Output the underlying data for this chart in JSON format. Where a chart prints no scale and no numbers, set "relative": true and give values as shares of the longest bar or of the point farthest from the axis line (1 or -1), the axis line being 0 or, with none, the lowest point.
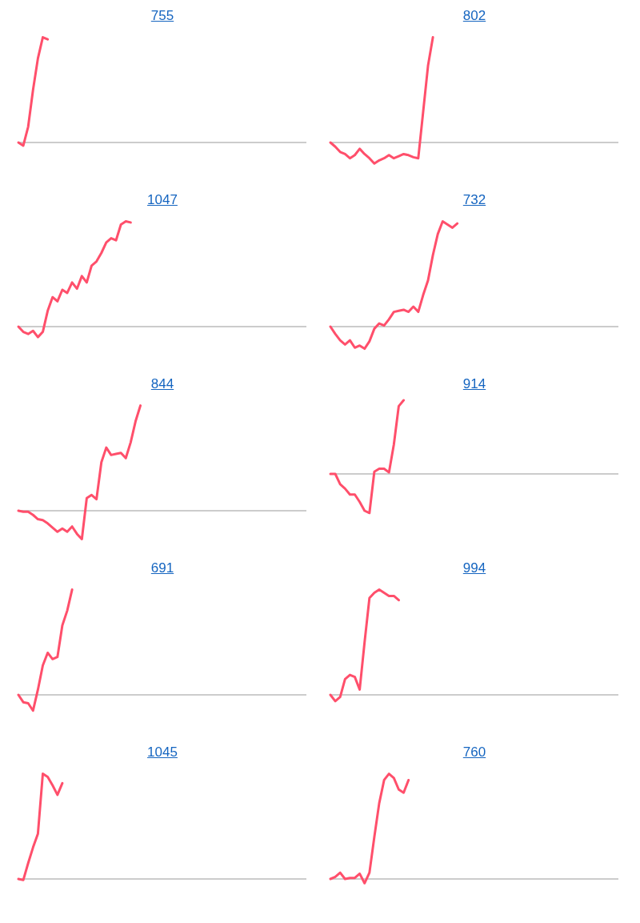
{
  "chart_data": [
    {
      "type": "line",
      "title": "755",
      "relative": true,
      "categories": [
        null,
        null,
        null,
        null,
        null,
        null,
        null,
        null,
        null,
        null,
        null,
        null,
        null,
        null,
        null,
        null,
        null,
        null,
        null,
        null,
        null,
        null,
        null,
        null,
        null,
        null,
        null,
        null,
        null,
        null,
        null,
        null,
        null,
        null,
        null,
        null,
        null,
        null,
        null,
        null,
        null,
        null,
        null,
        null,
        null,
        null,
        null,
        null,
        null,
        null,
        null,
        null,
        null,
        null,
        null,
        null,
        null,
        null,
        null,
        null
      ],
      "series": [
        {
          "color": "#ff4f6b",
          "values": [
            0,
            -0.03,
            0.15,
            0.5,
            0.8,
            1,
            0.98,
            null,
            null,
            null,
            null,
            null,
            null,
            null,
            null,
            null,
            null,
            null,
            null,
            null,
            null,
            null,
            null,
            null,
            null,
            null,
            null,
            null,
            null,
            null,
            null,
            null,
            null,
            null,
            null,
            null,
            null,
            null,
            null,
            null,
            null,
            null,
            null,
            null,
            null,
            null,
            null,
            null,
            null,
            null,
            null,
            null,
            null,
            null,
            null,
            null,
            null,
            null,
            null,
            null
          ]
        }
      ]
    },
    {
      "type": "line",
      "title": "802",
      "relative": true,
      "categories": [
        null,
        null,
        null,
        null,
        null,
        null,
        null,
        null,
        null,
        null,
        null,
        null,
        null,
        null,
        null,
        null,
        null,
        null,
        null,
        null,
        null,
        null,
        null,
        null,
        null,
        null,
        null,
        null,
        null,
        null,
        null,
        null,
        null,
        null,
        null,
        null,
        null,
        null,
        null,
        null,
        null,
        null,
        null,
        null,
        null,
        null,
        null,
        null,
        null,
        null,
        null,
        null,
        null,
        null,
        null,
        null,
        null,
        null,
        null,
        null
      ],
      "series": [
        {
          "color": "#ff4f6b",
          "values": [
            0,
            -0.04,
            -0.09,
            -0.11,
            -0.15,
            -0.12,
            -0.06,
            -0.11,
            -0.15,
            -0.2,
            -0.17,
            -0.15,
            -0.12,
            -0.15,
            -0.13,
            -0.11,
            -0.12,
            -0.14,
            -0.15,
            0.29,
            0.73,
            1,
            null,
            null,
            null,
            null,
            null,
            null,
            null,
            null,
            null,
            null,
            null,
            null,
            null,
            null,
            null,
            null,
            null,
            null,
            null,
            null,
            null,
            null,
            null,
            null,
            null,
            null,
            null,
            null,
            null,
            null,
            null,
            null,
            null,
            null,
            null,
            null,
            null,
            null
          ]
        }
      ]
    },
    {
      "type": "line",
      "title": "1047",
      "relative": true,
      "categories": [
        null,
        null,
        null,
        null,
        null,
        null,
        null,
        null,
        null,
        null,
        null,
        null,
        null,
        null,
        null,
        null,
        null,
        null,
        null,
        null,
        null,
        null,
        null,
        null,
        null,
        null,
        null,
        null,
        null,
        null,
        null,
        null,
        null,
        null,
        null,
        null,
        null,
        null,
        null,
        null,
        null,
        null,
        null,
        null,
        null,
        null,
        null,
        null,
        null,
        null,
        null,
        null,
        null,
        null,
        null,
        null,
        null,
        null,
        null,
        null
      ],
      "series": [
        {
          "color": "#ff4f6b",
          "values": [
            0,
            -0.05,
            -0.07,
            -0.04,
            -0.1,
            -0.05,
            0.15,
            0.28,
            0.24,
            0.35,
            0.32,
            0.42,
            0.36,
            0.48,
            0.42,
            0.58,
            0.62,
            0.7,
            0.8,
            0.84,
            0.82,
            0.97,
            1,
            0.99,
            null,
            null,
            null,
            null,
            null,
            null,
            null,
            null,
            null,
            null,
            null,
            null,
            null,
            null,
            null,
            null,
            null,
            null,
            null,
            null,
            null,
            null,
            null,
            null,
            null,
            null,
            null,
            null,
            null,
            null,
            null,
            null,
            null,
            null,
            null,
            null
          ]
        }
      ]
    },
    {
      "type": "line",
      "title": "732",
      "relative": true,
      "categories": [
        null,
        null,
        null,
        null,
        null,
        null,
        null,
        null,
        null,
        null,
        null,
        null,
        null,
        null,
        null,
        null,
        null,
        null,
        null,
        null,
        null,
        null,
        null,
        null,
        null,
        null,
        null,
        null,
        null,
        null,
        null,
        null,
        null,
        null,
        null,
        null,
        null,
        null,
        null,
        null,
        null,
        null,
        null,
        null,
        null,
        null,
        null,
        null,
        null,
        null,
        null,
        null,
        null,
        null,
        null,
        null,
        null,
        null,
        null,
        null
      ],
      "series": [
        {
          "color": "#ff4f6b",
          "values": [
            0,
            -0.07,
            -0.13,
            -0.17,
            -0.13,
            -0.2,
            -0.18,
            -0.21,
            -0.14,
            -0.02,
            0.03,
            0.01,
            0.07,
            0.14,
            0.15,
            0.16,
            0.14,
            0.19,
            0.14,
            0.3,
            0.44,
            0.68,
            0.88,
            1,
            0.97,
            0.94,
            0.98,
            null,
            null,
            null,
            null,
            null,
            null,
            null,
            null,
            null,
            null,
            null,
            null,
            null,
            null,
            null,
            null,
            null,
            null,
            null,
            null,
            null,
            null,
            null,
            null,
            null,
            null,
            null,
            null,
            null,
            null,
            null,
            null,
            null
          ]
        }
      ]
    },
    {
      "type": "line",
      "title": "844",
      "relative": true,
      "categories": [
        null,
        null,
        null,
        null,
        null,
        null,
        null,
        null,
        null,
        null,
        null,
        null,
        null,
        null,
        null,
        null,
        null,
        null,
        null,
        null,
        null,
        null,
        null,
        null,
        null,
        null,
        null,
        null,
        null,
        null,
        null,
        null,
        null,
        null,
        null,
        null,
        null,
        null,
        null,
        null,
        null,
        null,
        null,
        null,
        null,
        null,
        null,
        null,
        null,
        null,
        null,
        null,
        null,
        null,
        null,
        null,
        null,
        null,
        null,
        null
      ],
      "series": [
        {
          "color": "#ff4f6b",
          "values": [
            0,
            -0.01,
            -0.01,
            -0.04,
            -0.08,
            -0.09,
            -0.12,
            -0.16,
            -0.2,
            -0.17,
            -0.2,
            -0.15,
            -0.22,
            -0.27,
            0.12,
            0.15,
            0.11,
            0.46,
            0.6,
            0.53,
            0.54,
            0.55,
            0.5,
            0.65,
            0.85,
            1,
            null,
            null,
            null,
            null,
            null,
            null,
            null,
            null,
            null,
            null,
            null,
            null,
            null,
            null,
            null,
            null,
            null,
            null,
            null,
            null,
            null,
            null,
            null,
            null,
            null,
            null,
            null,
            null,
            null,
            null,
            null,
            null,
            null,
            null
          ]
        }
      ]
    },
    {
      "type": "line",
      "title": "914",
      "relative": true,
      "categories": [
        null,
        null,
        null,
        null,
        null,
        null,
        null,
        null,
        null,
        null,
        null,
        null,
        null,
        null,
        null,
        null,
        null,
        null,
        null,
        null,
        null,
        null,
        null,
        null,
        null,
        null,
        null,
        null,
        null,
        null,
        null,
        null,
        null,
        null,
        null,
        null,
        null,
        null,
        null,
        null,
        null,
        null,
        null,
        null,
        null,
        null,
        null,
        null,
        null,
        null,
        null,
        null,
        null,
        null,
        null,
        null,
        null,
        null,
        null,
        null
      ],
      "series": [
        {
          "color": "#ff4f6b",
          "values": [
            0,
            0,
            -0.14,
            -0.2,
            -0.28,
            -0.28,
            -0.38,
            -0.5,
            -0.53,
            0.03,
            0.07,
            0.07,
            0.02,
            0.4,
            0.92,
            1,
            null,
            null,
            null,
            null,
            null,
            null,
            null,
            null,
            null,
            null,
            null,
            null,
            null,
            null,
            null,
            null,
            null,
            null,
            null,
            null,
            null,
            null,
            null,
            null,
            null,
            null,
            null,
            null,
            null,
            null,
            null,
            null,
            null,
            null,
            null,
            null,
            null,
            null,
            null,
            null,
            null,
            null,
            null,
            null
          ]
        }
      ]
    },
    {
      "type": "line",
      "title": "691",
      "relative": true,
      "categories": [
        null,
        null,
        null,
        null,
        null,
        null,
        null,
        null,
        null,
        null,
        null,
        null,
        null,
        null,
        null,
        null,
        null,
        null,
        null,
        null,
        null,
        null,
        null,
        null,
        null,
        null,
        null,
        null,
        null,
        null,
        null,
        null,
        null,
        null,
        null,
        null,
        null,
        null,
        null,
        null,
        null,
        null,
        null,
        null,
        null,
        null,
        null,
        null,
        null,
        null,
        null,
        null,
        null,
        null,
        null,
        null,
        null,
        null,
        null,
        null
      ],
      "series": [
        {
          "color": "#ff4f6b",
          "values": [
            0,
            -0.07,
            -0.08,
            -0.15,
            0.05,
            0.28,
            0.4,
            0.34,
            0.36,
            0.66,
            0.8,
            1,
            null,
            null,
            null,
            null,
            null,
            null,
            null,
            null,
            null,
            null,
            null,
            null,
            null,
            null,
            null,
            null,
            null,
            null,
            null,
            null,
            null,
            null,
            null,
            null,
            null,
            null,
            null,
            null,
            null,
            null,
            null,
            null,
            null,
            null,
            null,
            null,
            null,
            null,
            null,
            null,
            null,
            null,
            null,
            null,
            null,
            null,
            null,
            null
          ]
        }
      ]
    },
    {
      "type": "line",
      "title": "994",
      "relative": true,
      "categories": [
        null,
        null,
        null,
        null,
        null,
        null,
        null,
        null,
        null,
        null,
        null,
        null,
        null,
        null,
        null,
        null,
        null,
        null,
        null,
        null,
        null,
        null,
        null,
        null,
        null,
        null,
        null,
        null,
        null,
        null,
        null,
        null,
        null,
        null,
        null,
        null,
        null,
        null,
        null,
        null,
        null,
        null,
        null,
        null,
        null,
        null,
        null,
        null,
        null,
        null,
        null,
        null,
        null,
        null,
        null,
        null,
        null,
        null,
        null,
        null
      ],
      "series": [
        {
          "color": "#ff4f6b",
          "values": [
            0,
            -0.06,
            -0.02,
            0.15,
            0.19,
            0.17,
            0.05,
            0.5,
            0.92,
            0.97,
            1,
            0.97,
            0.94,
            0.94,
            0.9,
            null,
            null,
            null,
            null,
            null,
            null,
            null,
            null,
            null,
            null,
            null,
            null,
            null,
            null,
            null,
            null,
            null,
            null,
            null,
            null,
            null,
            null,
            null,
            null,
            null,
            null,
            null,
            null,
            null,
            null,
            null,
            null,
            null,
            null,
            null,
            null,
            null,
            null,
            null,
            null,
            null,
            null,
            null,
            null,
            null
          ]
        }
      ]
    },
    {
      "type": "line",
      "title": "1045",
      "relative": true,
      "categories": [
        null,
        null,
        null,
        null,
        null,
        null,
        null,
        null,
        null,
        null,
        null,
        null,
        null,
        null,
        null,
        null,
        null,
        null,
        null,
        null,
        null,
        null,
        null,
        null,
        null,
        null,
        null,
        null,
        null,
        null,
        null,
        null,
        null,
        null,
        null,
        null,
        null,
        null,
        null,
        null,
        null,
        null,
        null,
        null,
        null,
        null,
        null,
        null,
        null,
        null,
        null,
        null,
        null,
        null,
        null,
        null,
        null,
        null,
        null,
        null
      ],
      "series": [
        {
          "color": "#ff4f6b",
          "values": [
            0,
            -0.01,
            0.15,
            0.3,
            0.43,
            1,
            0.97,
            0.89,
            0.8,
            0.91,
            null,
            null,
            null,
            null,
            null,
            null,
            null,
            null,
            null,
            null,
            null,
            null,
            null,
            null,
            null,
            null,
            null,
            null,
            null,
            null,
            null,
            null,
            null,
            null,
            null,
            null,
            null,
            null,
            null,
            null,
            null,
            null,
            null,
            null,
            null,
            null,
            null,
            null,
            null,
            null,
            null,
            null,
            null,
            null,
            null,
            null,
            null,
            null,
            null,
            null
          ]
        }
      ]
    },
    {
      "type": "line",
      "title": "760",
      "relative": true,
      "categories": [
        null,
        null,
        null,
        null,
        null,
        null,
        null,
        null,
        null,
        null,
        null,
        null,
        null,
        null,
        null,
        null,
        null,
        null,
        null,
        null,
        null,
        null,
        null,
        null,
        null,
        null,
        null,
        null,
        null,
        null,
        null,
        null,
        null,
        null,
        null,
        null,
        null,
        null,
        null,
        null,
        null,
        null,
        null,
        null,
        null,
        null,
        null,
        null,
        null,
        null,
        null,
        null,
        null,
        null,
        null,
        null,
        null,
        null,
        null,
        null
      ],
      "series": [
        {
          "color": "#ff4f6b",
          "values": [
            0,
            0.02,
            0.06,
            0,
            0.01,
            0.01,
            0.05,
            -0.04,
            0.06,
            0.4,
            0.72,
            0.94,
            1,
            0.96,
            0.85,
            0.82,
            0.94,
            null,
            null,
            null,
            null,
            null,
            null,
            null,
            null,
            null,
            null,
            null,
            null,
            null,
            null,
            null,
            null,
            null,
            null,
            null,
            null,
            null,
            null,
            null,
            null,
            null,
            null,
            null,
            null,
            null,
            null,
            null,
            null,
            null,
            null,
            null,
            null,
            null,
            null,
            null,
            null,
            null,
            null,
            null
          ]
        }
      ]
    }
  ]
}
